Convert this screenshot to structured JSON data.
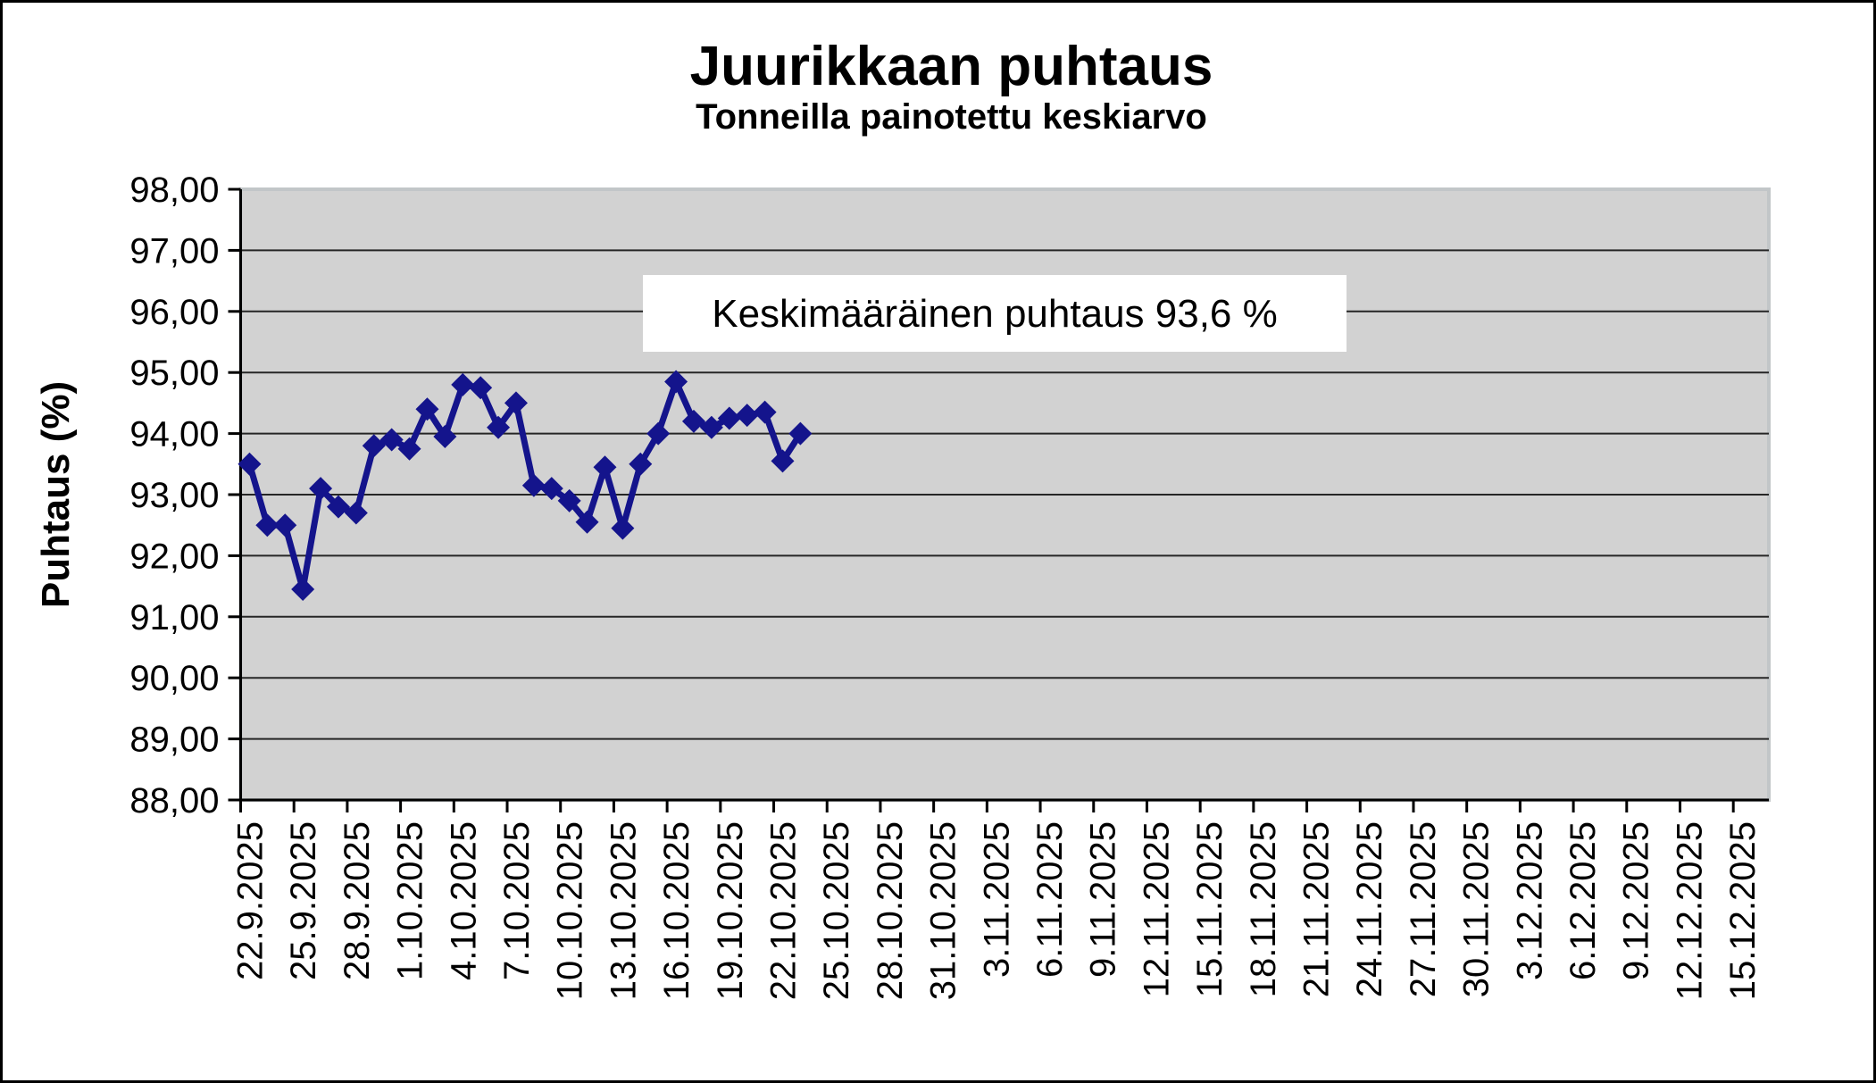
{
  "title": "Juurikkaan puhtaus",
  "subtitle": "Tonneilla painotettu keskiarvo",
  "annotation": {
    "text": "Keskimääräinen puhtaus 93,6 %",
    "average_value": "93,6"
  },
  "y_axis": {
    "title": "Puhtaus (%)",
    "tick_labels": [
      "98,00",
      "97,00",
      "96,00",
      "95,00",
      "94,00",
      "93,00",
      "92,00",
      "91,00",
      "90,00",
      "89,00",
      "88,00"
    ],
    "min": 88,
    "max": 98
  },
  "x_axis": {
    "tick_labels": [
      "22.9.2025",
      "25.9.2025",
      "28.9.2025",
      "1.10.2025",
      "4.10.2025",
      "7.10.2025",
      "10.10.2025",
      "13.10.2025",
      "16.10.2025",
      "19.10.2025",
      "22.10.2025",
      "25.10.2025",
      "28.10.2025",
      "31.10.2025",
      "3.11.2025",
      "6.11.2025",
      "9.11.2025",
      "12.11.2025",
      "15.11.2025",
      "18.11.2025",
      "21.11.2025",
      "24.11.2025",
      "27.11.2025",
      "30.11.2025",
      "3.12.2025",
      "6.12.2025",
      "9.12.2025",
      "12.12.2025",
      "15.12.2025"
    ],
    "label_interval_days": 3
  },
  "chart_data": {
    "type": "line",
    "title": "Juurikkaan puhtaus",
    "subtitle": "Tonneilla painotettu keskiarvo",
    "ylabel": "Puhtaus (%)",
    "ylim": [
      88,
      98
    ],
    "grid": "horizontal",
    "legend_position": "none",
    "marker": "diamond",
    "annotation": "Keskimääräinen puhtaus 93,6 %",
    "x_range_shown": [
      "22.9.2025",
      "15.12.2025"
    ],
    "x": [
      "22.9.2025",
      "23.9.2025",
      "24.9.2025",
      "25.9.2025",
      "26.9.2025",
      "27.9.2025",
      "28.9.2025",
      "29.9.2025",
      "30.9.2025",
      "1.10.2025",
      "2.10.2025",
      "3.10.2025",
      "4.10.2025",
      "5.10.2025",
      "6.10.2025",
      "7.10.2025",
      "8.10.2025",
      "9.10.2025",
      "10.10.2025",
      "11.10.2025",
      "12.10.2025",
      "13.10.2025",
      "14.10.2025",
      "15.10.2025",
      "16.10.2025",
      "17.10.2025",
      "18.10.2025",
      "19.10.2025",
      "20.10.2025",
      "21.10.2025",
      "22.10.2025",
      "23.10.2025"
    ],
    "values": [
      93.5,
      92.5,
      92.5,
      91.45,
      93.1,
      92.8,
      92.7,
      93.8,
      93.9,
      93.75,
      94.4,
      93.95,
      94.8,
      94.75,
      94.1,
      94.5,
      93.15,
      93.1,
      92.9,
      92.55,
      93.45,
      92.45,
      93.5,
      94.0,
      94.85,
      94.2,
      94.1,
      94.25,
      94.3,
      94.35,
      93.55,
      94.0
    ]
  },
  "colors": {
    "series": "#14148c",
    "plot_bg": "#d2d2d2",
    "plot_border": "#c2c6c8",
    "gridline": "#262626",
    "axis": "#000000",
    "annotation_bg": "#ffffff",
    "text": "#000000"
  }
}
